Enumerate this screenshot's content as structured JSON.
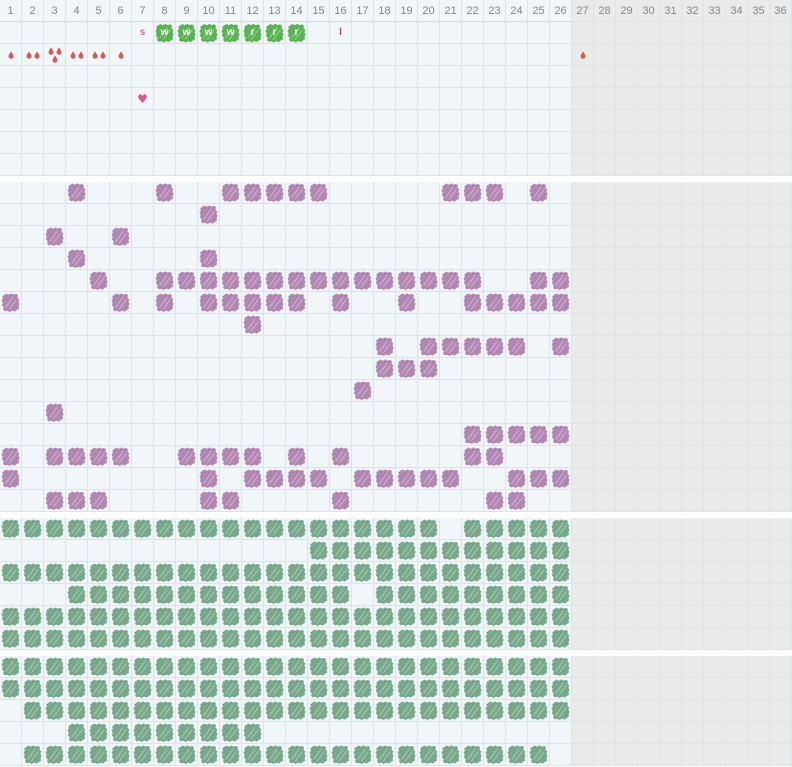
{
  "grid": {
    "columns": 36,
    "active_columns": 26,
    "header_numbers": [
      "1",
      "2",
      "3",
      "4",
      "5",
      "6",
      "7",
      "8",
      "9",
      "10",
      "11",
      "12",
      "13",
      "14",
      "15",
      "16",
      "17",
      "18",
      "19",
      "20",
      "21",
      "22",
      "23",
      "24",
      "25",
      "26",
      "27",
      "28",
      "29",
      "30",
      "31",
      "32",
      "33",
      "34",
      "35",
      "36"
    ]
  },
  "colors": {
    "bg_active": "#f0f6f9",
    "bg_inactive": "#e9eaea",
    "line_active": "#d4e5f1",
    "line_inactive": "#dde4e9",
    "header_border": "#c9dbe9",
    "header_text": "#7d8893",
    "gap_bg": "#ffffff",
    "purple_blob": "#b286b2",
    "sage_blob": "#77a88a",
    "green_fluid": "#57b44e",
    "fluid_letter": "#ffffff",
    "drop": "#da5850",
    "heart": "#e0548f",
    "s_letter": "#b576ad",
    "l_letter": "#a14f66"
  },
  "icons": {
    "heart_glyph": "♥"
  },
  "sections": [
    {
      "name": "symptom-section-top",
      "rows": [
        {
          "name": "cervical-fluid-row",
          "marks": [
            {
              "col": 7,
              "type": "letter",
              "label": "s",
              "color": "s_letter",
              "mark_name": "letter-s-mark"
            },
            {
              "col": 8,
              "type": "fluid",
              "label": "w"
            },
            {
              "col": 9,
              "type": "fluid",
              "label": "w"
            },
            {
              "col": 10,
              "type": "fluid",
              "label": "w"
            },
            {
              "col": 11,
              "type": "fluid",
              "label": "w"
            },
            {
              "col": 12,
              "type": "fluid",
              "label": "r"
            },
            {
              "col": 13,
              "type": "fluid",
              "label": "r"
            },
            {
              "col": 14,
              "type": "fluid",
              "label": "r"
            },
            {
              "col": 16,
              "type": "letter",
              "label": "l",
              "color": "l_letter",
              "mark_name": "letter-l-mark"
            }
          ]
        },
        {
          "name": "bleeding-row",
          "marks": [
            {
              "col": 1,
              "type": "drops",
              "count": 1
            },
            {
              "col": 2,
              "type": "drops",
              "count": 2
            },
            {
              "col": 3,
              "type": "drops",
              "count": 3
            },
            {
              "col": 4,
              "type": "drops",
              "count": 2
            },
            {
              "col": 5,
              "type": "drops",
              "count": 2
            },
            {
              "col": 6,
              "type": "drops",
              "count": 1
            },
            {
              "col": 27,
              "type": "drops",
              "count": 1
            }
          ]
        },
        {
          "name": "empty-row-1",
          "marks": []
        },
        {
          "name": "heart-row",
          "marks": [
            {
              "col": 7,
              "type": "heart"
            }
          ]
        },
        {
          "name": "empty-row-2",
          "marks": []
        },
        {
          "name": "empty-row-3",
          "marks": []
        },
        {
          "name": "empty-row-4",
          "marks": []
        }
      ]
    },
    {
      "name": "purple-tracker-section",
      "mark_type": "blob",
      "blob_color": "purple_blob",
      "blob_name": "purple-scribble-icon",
      "rows": [
        {
          "name": "row-1",
          "cols": [
            4,
            8,
            11,
            12,
            13,
            14,
            15,
            21,
            22,
            23,
            25
          ]
        },
        {
          "name": "row-2",
          "cols": [
            10
          ]
        },
        {
          "name": "row-3",
          "cols": [
            3,
            6
          ]
        },
        {
          "name": "row-4",
          "cols": [
            4,
            10
          ]
        },
        {
          "name": "row-5",
          "cols": [
            5,
            8,
            9,
            10,
            11,
            12,
            13,
            14,
            15,
            16,
            17,
            18,
            19,
            20,
            21,
            22,
            25,
            26
          ]
        },
        {
          "name": "row-6",
          "cols": [
            1,
            6,
            8,
            10,
            11,
            12,
            13,
            14,
            16,
            19,
            22,
            23,
            24,
            25,
            26
          ]
        },
        {
          "name": "row-7",
          "cols": [
            12
          ]
        },
        {
          "name": "row-8",
          "cols": [
            18,
            20,
            21,
            22,
            23,
            24,
            26
          ]
        },
        {
          "name": "row-9",
          "cols": [
            18,
            19,
            20
          ]
        },
        {
          "name": "row-10",
          "cols": [
            17
          ]
        },
        {
          "name": "row-11",
          "cols": [
            3
          ]
        },
        {
          "name": "row-12",
          "cols": [
            22,
            23,
            24,
            25,
            26
          ]
        },
        {
          "name": "row-13",
          "cols": [
            1,
            3,
            4,
            5,
            6,
            9,
            10,
            11,
            12,
            14,
            16,
            22,
            23
          ]
        },
        {
          "name": "row-14",
          "cols": [
            1,
            10,
            12,
            13,
            14,
            15,
            17,
            18,
            19,
            20,
            21,
            24,
            25,
            26
          ]
        },
        {
          "name": "row-15",
          "cols": [
            3,
            4,
            5,
            10,
            11,
            16,
            23,
            24
          ]
        }
      ]
    },
    {
      "name": "green-tracker-section-a",
      "mark_type": "blob",
      "blob_color": "sage_blob",
      "blob_name": "green-scribble-icon",
      "rows": [
        {
          "name": "row-1",
          "cols": [
            1,
            2,
            3,
            4,
            5,
            6,
            7,
            8,
            9,
            10,
            11,
            12,
            13,
            14,
            15,
            16,
            17,
            18,
            19,
            20,
            22,
            23,
            24,
            25,
            26
          ]
        },
        {
          "name": "row-2",
          "cols": [
            15,
            16,
            17,
            18,
            19,
            20,
            21,
            22,
            23,
            24,
            25,
            26
          ]
        },
        {
          "name": "row-3",
          "cols": [
            1,
            2,
            3,
            4,
            5,
            6,
            7,
            8,
            9,
            10,
            11,
            12,
            13,
            14,
            15,
            16,
            17,
            18,
            19,
            20,
            21,
            22,
            23,
            24,
            25,
            26
          ]
        },
        {
          "name": "row-4",
          "cols": [
            4,
            5,
            6,
            7,
            8,
            9,
            10,
            11,
            12,
            13,
            14,
            15,
            16,
            18,
            19,
            20,
            21,
            22,
            23,
            24,
            25,
            26
          ]
        },
        {
          "name": "row-5",
          "cols": [
            1,
            2,
            3,
            4,
            5,
            6,
            7,
            8,
            9,
            10,
            11,
            12,
            13,
            14,
            15,
            16,
            17,
            18,
            19,
            20,
            21,
            22,
            23,
            24,
            25,
            26
          ]
        },
        {
          "name": "row-6",
          "cols": [
            1,
            2,
            3,
            4,
            5,
            6,
            7,
            8,
            9,
            10,
            11,
            12,
            13,
            14,
            15,
            16,
            17,
            18,
            19,
            20,
            21,
            22,
            23,
            24,
            25,
            26
          ]
        }
      ]
    },
    {
      "name": "green-tracker-section-b",
      "mark_type": "blob",
      "blob_color": "sage_blob",
      "blob_name": "green-scribble-icon",
      "rows": [
        {
          "name": "row-1",
          "cols": [
            1,
            2,
            3,
            4,
            5,
            6,
            7,
            8,
            9,
            10,
            11,
            12,
            13,
            14,
            15,
            16,
            17,
            18,
            19,
            20,
            21,
            22,
            23,
            24,
            25,
            26
          ]
        },
        {
          "name": "row-2",
          "cols": [
            1,
            2,
            3,
            4,
            5,
            6,
            7,
            8,
            9,
            10,
            11,
            12,
            13,
            14,
            15,
            16,
            17,
            18,
            19,
            20,
            21,
            22,
            23,
            24,
            25,
            26
          ]
        },
        {
          "name": "row-3",
          "cols": [
            2,
            3,
            4,
            5,
            6,
            7,
            8,
            9,
            10,
            11,
            12,
            13,
            14,
            15,
            16,
            17,
            18,
            19,
            20,
            21,
            22,
            23,
            24,
            25,
            26
          ]
        },
        {
          "name": "row-4",
          "cols": [
            4,
            5,
            6,
            7,
            8,
            9,
            10,
            11,
            12
          ]
        },
        {
          "name": "row-5",
          "cols": [
            2,
            3,
            4,
            5,
            6,
            7,
            8,
            9,
            10,
            11,
            12,
            13,
            14,
            15,
            16,
            17,
            18,
            19,
            20,
            21,
            22,
            23,
            24,
            25
          ]
        }
      ]
    }
  ]
}
